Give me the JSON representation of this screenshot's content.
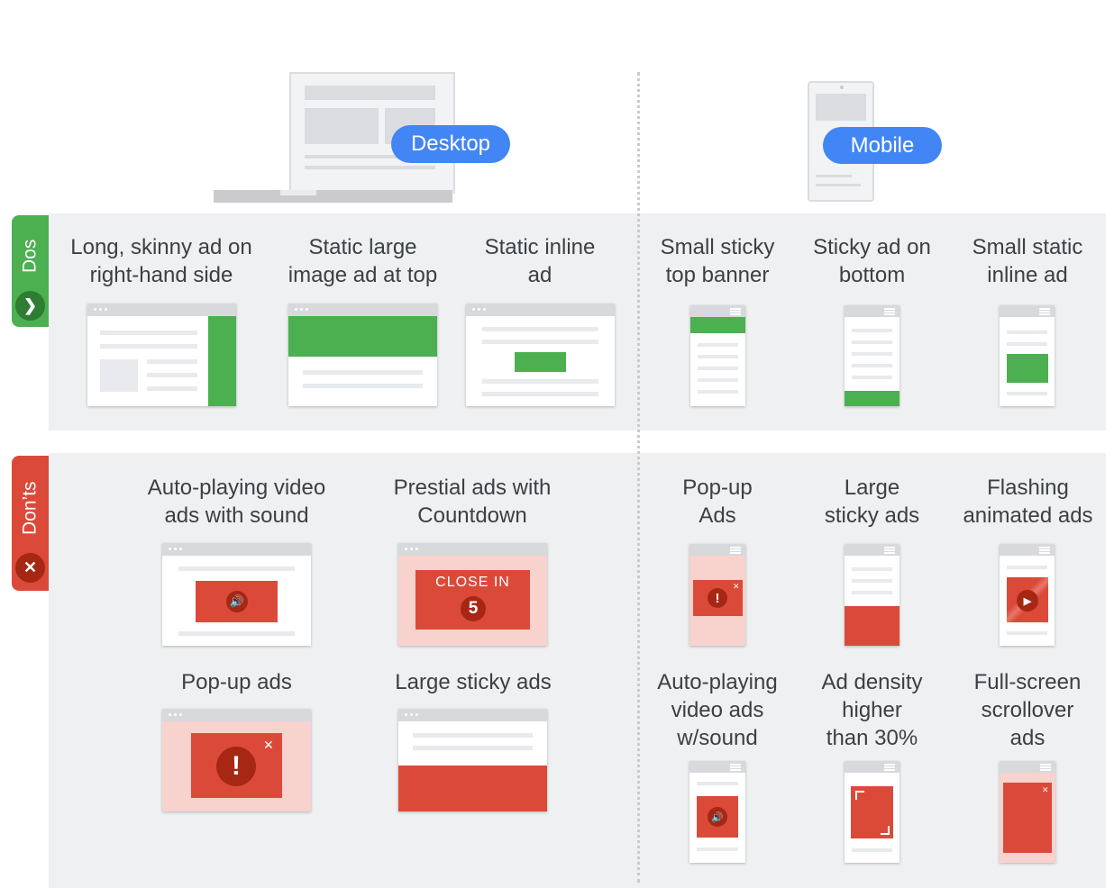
{
  "headers": {
    "desktop": "Desktop",
    "mobile": "Mobile"
  },
  "sections": {
    "dos": "Dos",
    "donts": "Don’ts"
  },
  "dos": {
    "desktop": [
      {
        "line1": "Long, skinny ad on",
        "line2": "right-hand side"
      },
      {
        "line1": "Static large",
        "line2": "image ad at top"
      },
      {
        "line1": "Static inline",
        "line2": "ad"
      }
    ],
    "mobile": [
      {
        "line1": "Small sticky",
        "line2": "top banner"
      },
      {
        "line1": "Sticky ad on",
        "line2": "bottom"
      },
      {
        "line1": "Small static",
        "line2": "inline ad"
      }
    ]
  },
  "donts": {
    "desktop": [
      {
        "line1": "Auto-playing video",
        "line2": "ads with sound"
      },
      {
        "line1": "Prestial ads with",
        "line2": "Countdown",
        "ad_text": "CLOSE IN",
        "countdown": "5"
      },
      {
        "line1": "Pop-up ads"
      },
      {
        "line1": "Large sticky ads"
      }
    ],
    "mobile": [
      {
        "line1": "Pop-up",
        "line2": "Ads"
      },
      {
        "line1": "Large",
        "line2": "sticky ads"
      },
      {
        "line1": "Flashing",
        "line2": "animated ads"
      },
      {
        "line1": "Auto-playing",
        "line2": "video ads",
        "line3": "w/sound"
      },
      {
        "line1": "Ad density",
        "line2": "higher",
        "line3": "than 30%"
      },
      {
        "line1": "Full-screen",
        "line2": "scrollover",
        "line3": "ads"
      }
    ]
  },
  "colors": {
    "good": "#4caf50",
    "bad": "#db4a39",
    "accent": "#4285f4",
    "background": "#eef0f2"
  },
  "icons": {
    "dos": "chevron-right-icon",
    "donts": "close-icon",
    "alert": "exclamation-icon",
    "sound": "speaker-icon",
    "play": "play-icon"
  }
}
